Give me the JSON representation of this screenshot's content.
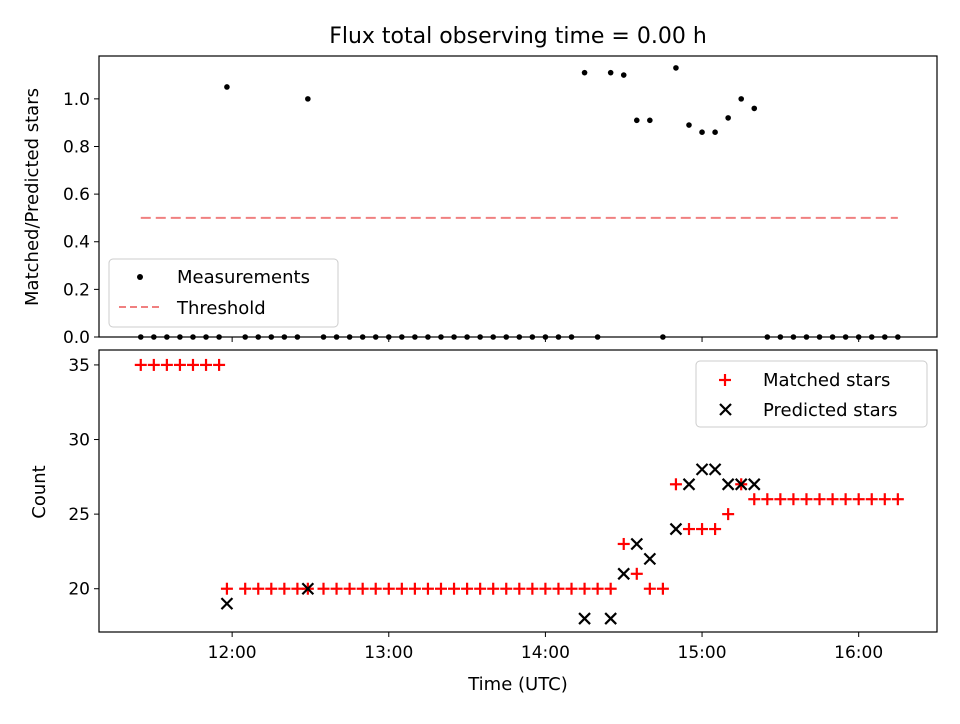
{
  "chart_data": [
    {
      "type": "scatter",
      "title": "Flux total observing time = 0.00 h",
      "xlabel": "",
      "ylabel": "Matched/Predicted stars",
      "ylim": [
        0,
        1.18
      ],
      "xlim_hours": [
        11.15,
        16.5
      ],
      "yticks": [
        0.0,
        0.2,
        0.4,
        0.6,
        0.8,
        1.0
      ],
      "ytick_labels": [
        "0.0",
        "0.2",
        "0.4",
        "0.6",
        "0.8",
        "1.0"
      ],
      "grid": false,
      "legend_position": "lower-left",
      "legend": [
        {
          "label": "Measurements",
          "marker": "dot",
          "color": "#000000"
        },
        {
          "label": "Threshold",
          "marker": "dashed-line",
          "color": "#f08080"
        }
      ],
      "series": [
        {
          "name": "Measurements",
          "color": "#000000",
          "x": [
            "11:25",
            "11:30",
            "11:35",
            "11:40",
            "11:45",
            "11:50",
            "11:55",
            "11:58",
            "12:05",
            "12:10",
            "12:15",
            "12:20",
            "12:25",
            "12:29",
            "12:35",
            "12:40",
            "12:45",
            "12:50",
            "12:55",
            "13:00",
            "13:05",
            "13:10",
            "13:15",
            "13:20",
            "13:25",
            "13:30",
            "13:35",
            "13:40",
            "13:45",
            "13:50",
            "13:55",
            "14:00",
            "14:05",
            "14:10",
            "14:15",
            "14:20",
            "14:25",
            "14:30",
            "14:35",
            "14:40",
            "14:45",
            "14:50",
            "14:55",
            "15:00",
            "15:05",
            "15:10",
            "15:15",
            "15:20",
            "15:25",
            "15:30",
            "15:35",
            "15:40",
            "15:45",
            "15:50",
            "15:55",
            "16:00",
            "16:05",
            "16:10",
            "16:15"
          ],
          "y": [
            0,
            0,
            0,
            0,
            0,
            0,
            0,
            1.05,
            0,
            0,
            0,
            0,
            0,
            1.0,
            0,
            0,
            0,
            0,
            0,
            0,
            0,
            0,
            0,
            0,
            0,
            0,
            0,
            0,
            0,
            0,
            0,
            0,
            0,
            0,
            1.11,
            0,
            1.11,
            1.1,
            0.91,
            0.91,
            0,
            1.13,
            0.89,
            0.86,
            0.86,
            0.92,
            1.0,
            0.96,
            0,
            0,
            0,
            0,
            0,
            0,
            0,
            0,
            0,
            0,
            0
          ]
        },
        {
          "name": "Threshold",
          "color": "#f08080",
          "x": [
            "11:25",
            "16:15"
          ],
          "y": [
            0.5,
            0.5
          ]
        }
      ]
    },
    {
      "type": "scatter",
      "title": "",
      "xlabel": "Time (UTC)",
      "ylabel": "Count",
      "ylim": [
        17.1,
        36.0
      ],
      "xlim_hours": [
        11.15,
        16.5
      ],
      "yticks": [
        20,
        25,
        30,
        35
      ],
      "ytick_labels": [
        "20",
        "25",
        "30",
        "35"
      ],
      "xticks_hours": [
        12,
        13,
        14,
        15,
        16
      ],
      "xtick_labels": [
        "12:00",
        "13:00",
        "14:00",
        "15:00",
        "16:00"
      ],
      "grid": false,
      "legend_position": "top-right",
      "legend": [
        {
          "label": "Matched stars",
          "marker": "plus",
          "color": "#ff0000"
        },
        {
          "label": "Predicted stars",
          "marker": "x",
          "color": "#000000"
        }
      ],
      "series": [
        {
          "name": "Matched stars",
          "color": "#ff0000",
          "marker": "plus",
          "x": [
            "11:25",
            "11:30",
            "11:35",
            "11:40",
            "11:45",
            "11:50",
            "11:55",
            "11:58",
            "12:05",
            "12:10",
            "12:15",
            "12:20",
            "12:25",
            "12:29",
            "12:35",
            "12:40",
            "12:45",
            "12:50",
            "12:55",
            "13:00",
            "13:05",
            "13:10",
            "13:15",
            "13:20",
            "13:25",
            "13:30",
            "13:35",
            "13:40",
            "13:45",
            "13:50",
            "13:55",
            "14:00",
            "14:05",
            "14:10",
            "14:15",
            "14:20",
            "14:25",
            "14:30",
            "14:35",
            "14:40",
            "14:45",
            "14:50",
            "14:55",
            "15:00",
            "15:05",
            "15:10",
            "15:15",
            "15:20",
            "15:25",
            "15:30",
            "15:35",
            "15:40",
            "15:45",
            "15:50",
            "15:55",
            "16:00",
            "16:05",
            "16:10",
            "16:15"
          ],
          "y": [
            35,
            35,
            35,
            35,
            35,
            35,
            35,
            20,
            20,
            20,
            20,
            20,
            20,
            20,
            20,
            20,
            20,
            20,
            20,
            20,
            20,
            20,
            20,
            20,
            20,
            20,
            20,
            20,
            20,
            20,
            20,
            20,
            20,
            20,
            20,
            20,
            20,
            23,
            21,
            20,
            20,
            27,
            24,
            24,
            24,
            25,
            27,
            26,
            26,
            26,
            26,
            26,
            26,
            26,
            26,
            26,
            26,
            26,
            26
          ]
        },
        {
          "name": "Predicted stars",
          "color": "#000000",
          "marker": "x",
          "x": [
            "11:58",
            "12:29",
            "14:15",
            "14:25",
            "14:30",
            "14:35",
            "14:40",
            "14:50",
            "14:55",
            "15:00",
            "15:05",
            "15:10",
            "15:15",
            "15:20"
          ],
          "y": [
            19,
            20,
            18,
            18,
            21,
            23,
            22,
            24,
            27,
            28,
            28,
            27,
            27,
            27
          ]
        }
      ]
    }
  ]
}
